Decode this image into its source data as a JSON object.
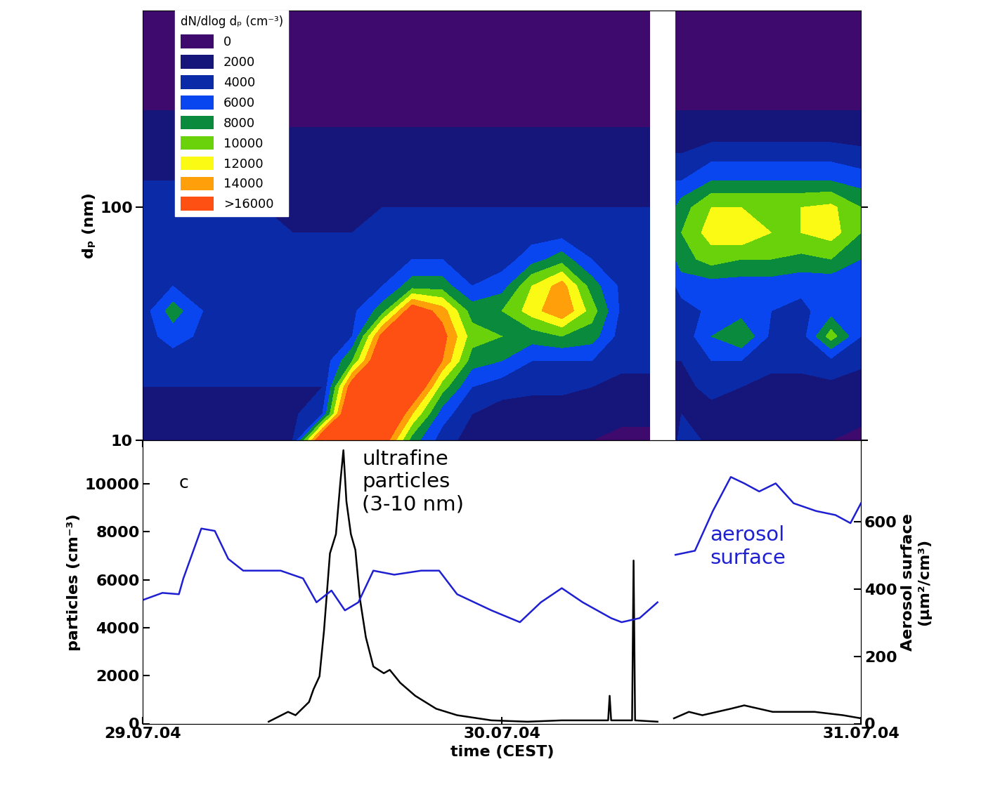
{
  "chart_data": [
    {
      "type": "heatmap",
      "y_label": "dₚ (nm)",
      "log": "y",
      "tick_labels": "y",
      "legend": "upper left",
      "xlim": [
        0,
        48
      ],
      "xticks": [
        {
          "value": 0,
          "label": "29.07.04"
        },
        {
          "value": 24,
          "label": "30.07.04"
        },
        {
          "value": 48,
          "label": "31.07.04"
        }
      ],
      "ylim": [
        10,
        700
      ],
      "yticks": [
        10,
        100
      ],
      "x": [
        0,
        2,
        4,
        6,
        8,
        10,
        12,
        14,
        16,
        18,
        20,
        22,
        24,
        26,
        28,
        30,
        32,
        33.9,
        34.0,
        35.5,
        35.6,
        36,
        38,
        40,
        42,
        44,
        46,
        48
      ],
      "y": [
        10,
        13,
        17,
        22,
        28,
        36,
        46,
        60,
        78,
        100,
        130,
        170,
        220,
        300,
        400,
        700
      ],
      "cells": [
        [
          3000,
          3500,
          4000,
          4500,
          5000,
          5000,
          5000,
          5000,
          5000,
          4500,
          4000,
          3500,
          2500,
          1500,
          500,
          0
        ],
        [
          3000,
          3500,
          4000,
          5000,
          7000,
          9000,
          6000,
          5000,
          5000,
          4500,
          4000,
          3500,
          2500,
          1500,
          500,
          0
        ],
        [
          3000,
          3500,
          4000,
          4500,
          5500,
          6000,
          5500,
          5000,
          5000,
          4500,
          4000,
          3500,
          2500,
          1500,
          500,
          0
        ],
        [
          3000,
          3500,
          4000,
          5500,
          6000,
          5500,
          5000,
          5000,
          5000,
          4500,
          4000,
          3500,
          2500,
          1500,
          500,
          0
        ],
        [
          2000,
          3000,
          4000,
          5000,
          5500,
          5000,
          5000,
          5000,
          4500,
          4000,
          3500,
          3000,
          2000,
          1500,
          500,
          0
        ],
        [
          4000,
          3500,
          4000,
          4500,
          5000,
          5000,
          5000,
          4500,
          4000,
          4000,
          3500,
          3000,
          2000,
          1500,
          500,
          0
        ],
        [
          20000,
          6000,
          4000,
          4500,
          5000,
          5000,
          5000,
          4500,
          4000,
          4000,
          3500,
          3000,
          2000,
          1500,
          500,
          0
        ],
        [
          25000,
          22000,
          18000,
          10000,
          6000,
          5500,
          5000,
          4500,
          4000,
          4000,
          3500,
          3000,
          2000,
          1500,
          500,
          0
        ],
        [
          18000,
          22000,
          22000,
          20000,
          17000,
          9000,
          6000,
          5000,
          4500,
          4000,
          3500,
          3000,
          2000,
          1500,
          500,
          0
        ],
        [
          9000,
          14000,
          20000,
          22000,
          21000,
          18000,
          9000,
          6000,
          4500,
          4000,
          3500,
          3000,
          2000,
          1500,
          500,
          0
        ],
        [
          5000,
          7000,
          11000,
          16000,
          17000,
          15000,
          9000,
          6000,
          4500,
          4000,
          3500,
          3000,
          2000,
          1500,
          500,
          0
        ],
        [
          3000,
          4000,
          6000,
          9000,
          11000,
          9000,
          6000,
          5000,
          4500,
          4000,
          3500,
          3000,
          2000,
          1500,
          500,
          0
        ],
        [
          2000,
          3000,
          5000,
          8000,
          10000,
          10000,
          7000,
          5000,
          4500,
          4000,
          3500,
          3000,
          2000,
          1500,
          500,
          0
        ],
        [
          2000,
          3000,
          4500,
          6000,
          9000,
          13000,
          12000,
          7000,
          5000,
          4000,
          3500,
          3000,
          2000,
          1500,
          500,
          0
        ],
        [
          2000,
          3000,
          4500,
          6000,
          10000,
          16000,
          15000,
          9000,
          5000,
          4000,
          3500,
          3000,
          2000,
          1500,
          500,
          0
        ],
        [
          2000,
          3000,
          4000,
          6000,
          9000,
          11000,
          9000,
          6000,
          5000,
          4000,
          3500,
          3000,
          2000,
          1500,
          500,
          0
        ],
        [
          1500,
          2500,
          3500,
          4500,
          5000,
          5500,
          5500,
          5000,
          4500,
          4000,
          3500,
          3000,
          2000,
          1500,
          500,
          0
        ],
        [
          1500,
          2500,
          3500,
          4500,
          5000,
          5500,
          5500,
          5000,
          4500,
          4000,
          3500,
          3000,
          2000,
          1500,
          500,
          0
        ],
        [
          null,
          null,
          null,
          null,
          null,
          null,
          null,
          null,
          null,
          null,
          null,
          null,
          null,
          null,
          null,
          null
        ],
        [
          null,
          null,
          null,
          null,
          null,
          null,
          null,
          null,
          null,
          null,
          null,
          null,
          null,
          null,
          null,
          null
        ],
        [
          3000,
          3000,
          3500,
          4000,
          4500,
          5000,
          6000,
          8000,
          9000,
          8000,
          6000,
          4000,
          2500,
          1500,
          500,
          0
        ],
        [
          6000,
          4000,
          3500,
          4000,
          4500,
          5000,
          7000,
          9000,
          10000,
          9000,
          6000,
          4000,
          2500,
          1500,
          500,
          0
        ],
        [
          3000,
          3500,
          4500,
          6000,
          8000,
          6500,
          7000,
          11000,
          13000,
          12000,
          8000,
          5000,
          2500,
          1500,
          500,
          0
        ],
        [
          2500,
          3000,
          4000,
          6000,
          10000,
          7000,
          7000,
          10000,
          14000,
          12000,
          8000,
          5000,
          2500,
          1500,
          500,
          0
        ],
        [
          2000,
          3000,
          3500,
          4500,
          5500,
          6000,
          7000,
          10000,
          12000,
          12000,
          8000,
          5000,
          2500,
          1500,
          500,
          0
        ],
        [
          2000,
          3000,
          3500,
          4500,
          5000,
          5500,
          6500,
          9500,
          12000,
          12000,
          8000,
          5000,
          2500,
          1500,
          500,
          0
        ],
        [
          2000,
          3000,
          3500,
          5500,
          11000,
          7000,
          6500,
          10000,
          13000,
          12500,
          8000,
          5000,
          2500,
          1500,
          500,
          0
        ],
        [
          1500,
          2500,
          3000,
          4500,
          6000,
          6000,
          6000,
          8000,
          10000,
          10000,
          7000,
          4500,
          2500,
          1500,
          500,
          0
        ]
      ],
      "colorbar": {
        "label": "dN/dlog dₚ (cm⁻³)",
        "ticks": [
          0,
          2000,
          4000,
          6000,
          8000,
          10000,
          12000,
          14000,
          {
            "value": 16000,
            "label": ">16000"
          }
        ],
        "colors": [
          "#3f0a6e",
          "#16157a",
          "#0a2aa8",
          "#0a46f0",
          "#0a8a3c",
          "#6ad20a",
          "#fafa14",
          "#ffa00a",
          "#ff5014"
        ]
      }
    },
    {
      "type": "line",
      "x_label": "time (CEST)",
      "y_label": "particles (cm⁻³)",
      "y2_label": "Aerosol surface\n(µm²/cm³)",
      "annotations": [
        {
          "text": "c",
          "color": "#000000"
        }
      ],
      "xlim": [
        0,
        48
      ],
      "xticks": [
        {
          "value": 0,
          "label": "29.07.04"
        },
        {
          "value": 24,
          "label": "30.07.04"
        },
        {
          "value": 48,
          "label": "31.07.04"
        }
      ],
      "ylim": [
        0,
        11800
      ],
      "yticks": [
        0,
        2000,
        4000,
        6000,
        8000,
        10000
      ],
      "y2lim": [
        0,
        840
      ],
      "y2ticks": [
        0,
        200,
        400,
        600
      ],
      "series": [
        {
          "name": "ultrafine\nparticles\n(3-10 nm)",
          "color": "#000000",
          "x": [
            8.4,
            9.7,
            10.2,
            11.1,
            11.4,
            11.8,
            12.1,
            12.5,
            12.9,
            13.2,
            13.4,
            13.6,
            13.9,
            14.2,
            14.5,
            14.9,
            15.4,
            16.1,
            16.5,
            17.2,
            18.2,
            19.6,
            21.0,
            23.3,
            25.7,
            28.0,
            31.1,
            31.2,
            31.3,
            32.7,
            32.8,
            32.9,
            34.4,
            35.0,
            35.5,
            36.5,
            37.4,
            39.3,
            40.2,
            42.1,
            44.9,
            46.8,
            48.0
          ],
          "values": [
            80,
            490,
            350,
            900,
            1430,
            1970,
            3860,
            7100,
            7900,
            10100,
            11400,
            9270,
            7900,
            7240,
            5220,
            3600,
            2380,
            2100,
            2240,
            1700,
            1160,
            620,
            350,
            135,
            80,
            135,
            135,
            1160,
            135,
            135,
            6800,
            135,
            80,
            null,
            220,
            490,
            350,
            620,
            760,
            490,
            490,
            350,
            220
          ]
        },
        {
          "name": "aerosol\nsurface",
          "color": "#1f1fd2",
          "axis": "y2",
          "x": [
            0,
            1.3,
            2.4,
            2.7,
            3.9,
            4.8,
            5.7,
            6.7,
            7.6,
            9.2,
            10.7,
            11.6,
            12.6,
            13.5,
            14.4,
            15.4,
            16.8,
            18.6,
            19.8,
            21.0,
            23.3,
            25.2,
            26.6,
            28.0,
            29.4,
            31.3,
            32.0,
            33.2,
            34.4,
            35.0,
            35.6,
            36.9,
            38.1,
            39.3,
            40.2,
            41.2,
            42.3,
            43.5,
            45.0,
            46.3,
            47.3,
            48.0
          ],
          "values": [
            367,
            388,
            384,
            431,
            579,
            572,
            489,
            454,
            454,
            454,
            431,
            360,
            395,
            336,
            360,
            454,
            442,
            454,
            454,
            384,
            336,
            301,
            360,
            402,
            360,
            313,
            301,
            313,
            360,
            null,
            501,
            513,
            631,
            732,
            713,
            689,
            713,
            654,
            631,
            619,
            595,
            654
          ]
        }
      ]
    }
  ]
}
